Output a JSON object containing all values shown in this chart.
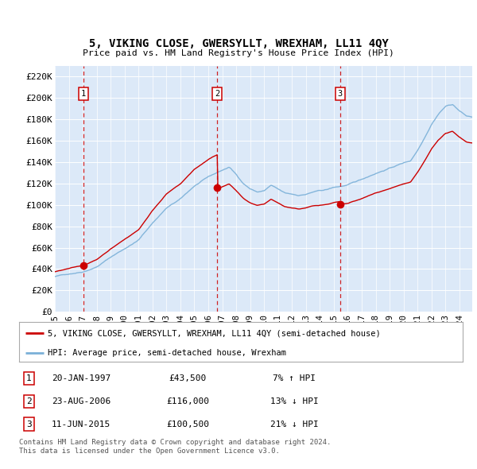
{
  "title": "5, VIKING CLOSE, GWERSYLLT, WREXHAM, LL11 4QY",
  "subtitle": "Price paid vs. HM Land Registry's House Price Index (HPI)",
  "ylabel_ticks": [
    "£0",
    "£20K",
    "£40K",
    "£60K",
    "£80K",
    "£100K",
    "£120K",
    "£140K",
    "£160K",
    "£180K",
    "£200K",
    "£220K"
  ],
  "ytick_values": [
    0,
    20000,
    40000,
    60000,
    80000,
    100000,
    120000,
    140000,
    160000,
    180000,
    200000,
    220000
  ],
  "ylim": [
    0,
    230000
  ],
  "xlim_start": 1995.0,
  "xlim_end": 2024.92,
  "plot_bg": "#dce9f8",
  "grid_color": "#ffffff",
  "sale_color": "#cc0000",
  "hpi_color": "#7ab0d8",
  "sale_label": "5, VIKING CLOSE, GWERSYLLT, WREXHAM, LL11 4QY (semi-detached house)",
  "hpi_label": "HPI: Average price, semi-detached house, Wrexham",
  "transactions": [
    {
      "num": 1,
      "date_str": "20-JAN-1997",
      "date_x": 1997.05,
      "price": 43500,
      "pct": "7%",
      "dir": "↑"
    },
    {
      "num": 2,
      "date_str": "23-AUG-2006",
      "date_x": 2006.65,
      "price": 116000,
      "pct": "13%",
      "dir": "↓"
    },
    {
      "num": 3,
      "date_str": "11-JUN-2015",
      "date_x": 2015.45,
      "price": 100500,
      "pct": "21%",
      "dir": "↓"
    }
  ],
  "footer1": "Contains HM Land Registry data © Crown copyright and database right 2024.",
  "footer2": "This data is licensed under the Open Government Licence v3.0."
}
